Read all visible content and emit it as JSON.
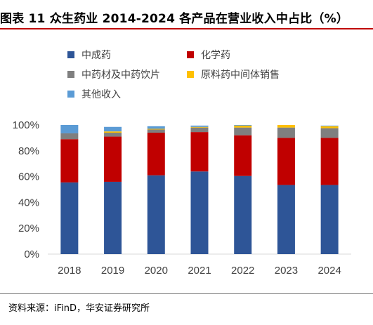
{
  "title": "图表 11 众生药业 2014-2024 各产品在营业收入中占比（%）",
  "source": "资料来源：iFinD，华安证券研究所",
  "chart_data": {
    "type": "bar",
    "stacked": true,
    "categories": [
      "2018",
      "2019",
      "2020",
      "2021",
      "2022",
      "2023",
      "2024"
    ],
    "series": [
      {
        "name": "中成药",
        "color": "#2e5597",
        "values": [
          55.5,
          56.0,
          61.0,
          64.0,
          60.5,
          53.5,
          53.5
        ]
      },
      {
        "name": "化学药",
        "color": "#c00000",
        "values": [
          33.5,
          35.0,
          33.0,
          30.5,
          31.5,
          36.5,
          36.5
        ]
      },
      {
        "name": "中药材及中药饮片",
        "color": "#7f7f7f",
        "values": [
          4.5,
          3.0,
          2.5,
          3.5,
          6.0,
          8.0,
          7.5
        ]
      },
      {
        "name": "原料药中间体销售",
        "color": "#ffc000",
        "values": [
          0,
          1.0,
          0.5,
          0.5,
          1.5,
          2.0,
          1.5
        ]
      },
      {
        "name": "其他收入",
        "color": "#5b9bd5",
        "values": [
          6.5,
          3.5,
          2.0,
          1.0,
          0.5,
          0,
          0.5
        ]
      }
    ],
    "ylim": [
      0,
      100
    ],
    "yticks": [
      "0%",
      "20%",
      "40%",
      "60%",
      "80%",
      "100%"
    ],
    "grid": false,
    "legend_position": "top-left"
  }
}
